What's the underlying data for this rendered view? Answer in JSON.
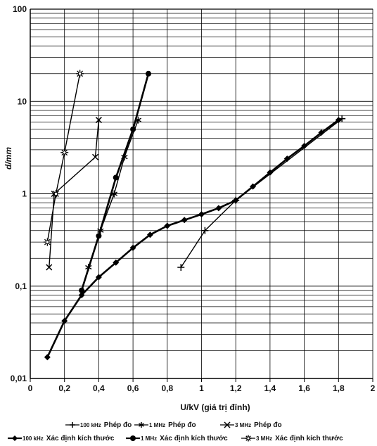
{
  "chart_data": {
    "type": "line",
    "xlabel": "U/kV (giá trị đỉnh)",
    "ylabel": "d/mm",
    "xlim": [
      0,
      2
    ],
    "ylim": [
      0.01,
      100
    ],
    "yscale": "log",
    "grid": true,
    "x_ticks": [
      "0",
      "0,2",
      "0,4",
      "0,6",
      "0,8",
      "1",
      "1,2",
      "1,4",
      "1,6",
      "1,8",
      "2"
    ],
    "y_ticks": [
      "0,01",
      "0,1",
      "1",
      "10",
      "100"
    ],
    "series": [
      {
        "name": "100 kHz Phép đo",
        "marker": "plus",
        "style": "thin",
        "x": [
          0.88,
          1.02,
          1.2,
          1.82
        ],
        "y": [
          0.16,
          0.4,
          0.85,
          6.5
        ]
      },
      {
        "name": "1 MHz Phép đo",
        "marker": "star",
        "style": "thin",
        "x": [
          0.34,
          0.41,
          0.49,
          0.55,
          0.63
        ],
        "y": [
          0.16,
          0.4,
          1.0,
          2.5,
          6.3
        ]
      },
      {
        "name": "3 MHz Phép đo",
        "marker": "x",
        "style": "thin",
        "x": [
          0.11,
          0.14,
          0.38,
          0.4
        ],
        "y": [
          0.16,
          1.0,
          2.5,
          6.3
        ]
      },
      {
        "name": "100 kHz Xác định kích thước",
        "marker": "diamond",
        "style": "thick",
        "x": [
          0.1,
          0.2,
          0.3,
          0.4,
          0.5,
          0.6,
          0.7,
          0.8,
          0.9,
          1.0,
          1.1,
          1.2,
          1.3,
          1.4,
          1.5,
          1.6,
          1.7,
          1.8
        ],
        "y": [
          0.017,
          0.042,
          0.08,
          0.125,
          0.18,
          0.26,
          0.36,
          0.45,
          0.52,
          0.6,
          0.7,
          0.85,
          1.2,
          1.7,
          2.4,
          3.3,
          4.6,
          6.3
        ]
      },
      {
        "name": "1 MHz Xác định kích thước",
        "marker": "circle",
        "style": "thick",
        "x": [
          0.3,
          0.4,
          0.5,
          0.6,
          0.69
        ],
        "y": [
          0.09,
          0.35,
          1.5,
          5.0,
          20.0
        ]
      },
      {
        "name": "3 MHz Xác định kích thước",
        "marker": "asterisk",
        "style": "thin",
        "x": [
          0.1,
          0.15,
          0.2,
          0.29
        ],
        "y": [
          0.3,
          1.0,
          2.8,
          20.0
        ]
      }
    ]
  },
  "legend": {
    "row1": [
      {
        "freq": "100 kHz",
        "text": "Phép đo",
        "marker": "plus"
      },
      {
        "freq": "1 MHz",
        "text": "Phép đo",
        "marker": "star"
      },
      {
        "freq": "3 MHz",
        "text": "Phép đo",
        "marker": "x"
      }
    ],
    "row2": [
      {
        "freq": "100 kHz",
        "text": "Xác định kích thước",
        "marker": "diamond"
      },
      {
        "freq": "1 MHz",
        "text": "Xác định kích thước",
        "marker": "circle"
      },
      {
        "freq": "3 MHz",
        "text": "Xác định kích thước",
        "marker": "asterisk"
      }
    ]
  }
}
